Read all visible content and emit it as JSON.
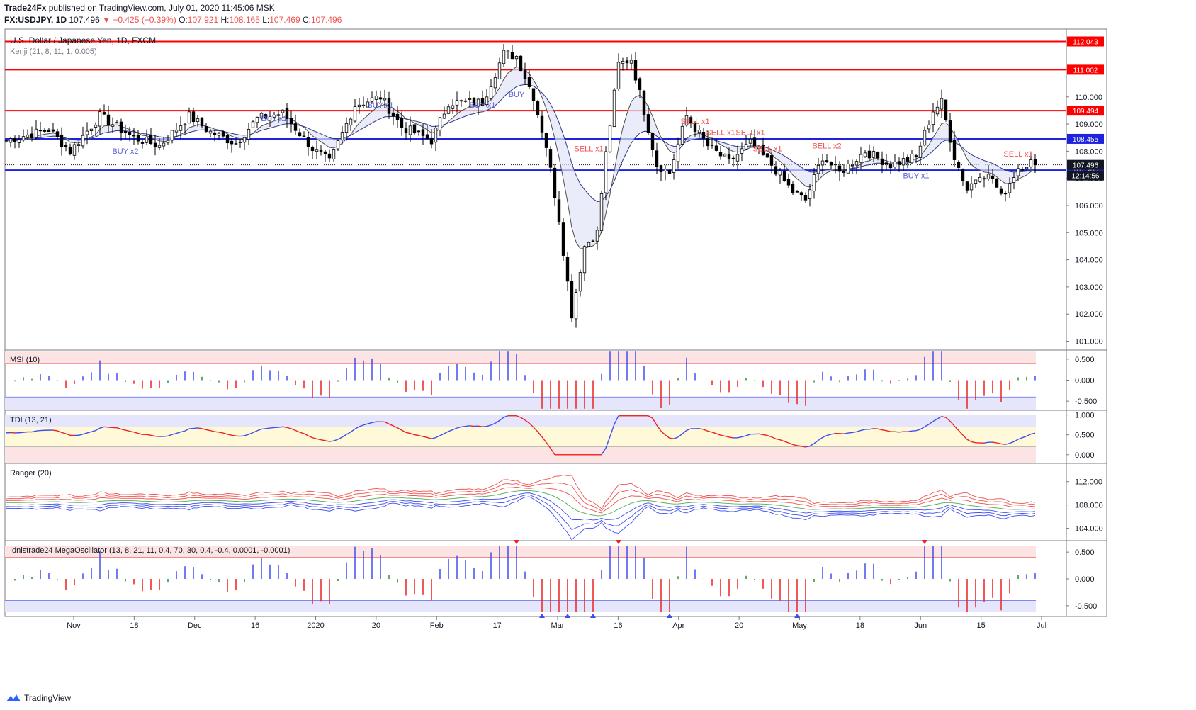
{
  "header": {
    "publisher": "Trade24Fx",
    "published_text": "published on TradingView.com, July 01, 2020 11:45:06 MSK",
    "symbol": "FX:USDJPY, 1D",
    "last": "107.496",
    "change": "−0.425 (−0.39%)",
    "o_label": "O:",
    "o": "107.921",
    "h_label": "H:",
    "h": "108.165",
    "l_label": "L:",
    "l": "107.469",
    "c_label": "C:",
    "c": "107.496"
  },
  "footer": {
    "brand": "TradingView",
    "logo_icon": "tradingview-logo-icon"
  },
  "colors": {
    "up": "#ffffff",
    "down": "#000000",
    "support": "#1e22dc",
    "resistance": "#ff0000",
    "kenji_up": "#4caf50",
    "kenji_down": "#ef5350",
    "osc_up": "#3f4df0",
    "osc_down": "#ef2020",
    "osc_neutral": "#2e8b3a"
  },
  "chart_data": [
    {
      "type": "candlestick",
      "title": "U.S. Dollar / Japanese Yen, 1D, FXCM",
      "indicator_label": "Kenji (21, 8, 11, 1, 0.005)",
      "y_ticks": [
        "112.000",
        "111.000",
        "110.000",
        "109.000",
        "108.000",
        "107.000",
        "106.000",
        "105.000",
        "104.000",
        "103.000",
        "102.000",
        "101.000"
      ],
      "ylim": [
        100.7,
        112.5
      ],
      "x_ticks": [
        "Nov",
        "18",
        "Dec",
        "16",
        "2020",
        "20",
        "Feb",
        "17",
        "Mar",
        "16",
        "Apr",
        "20",
        "May",
        "18",
        "Jun",
        "15",
        "Jul"
      ],
      "levels": [
        {
          "label": "112.043",
          "value": 112.043,
          "kind": "resistance"
        },
        {
          "label": "111.002",
          "value": 111.002,
          "kind": "resistance"
        },
        {
          "label": "109.494",
          "value": 109.494,
          "kind": "resistance"
        },
        {
          "label": "108.455",
          "value": 108.455,
          "kind": "support"
        },
        {
          "label": "107.300",
          "value": 107.3,
          "kind": "support"
        }
      ],
      "last_price_label": "107.496",
      "last_price": 107.496,
      "countdown_label": "12:14:56",
      "signals": [
        {
          "text": "BUY x2",
          "i": 28,
          "price": 107.9,
          "side": "buy"
        },
        {
          "text": "BUY x1",
          "i": 63,
          "price": 109.1,
          "side": "buy"
        },
        {
          "text": "BUY x1",
          "i": 88,
          "price": 109.6,
          "side": "buy"
        },
        {
          "text": "BUY x1",
          "i": 112,
          "price": 109.6,
          "side": "buy"
        },
        {
          "text": "BUY",
          "i": 120,
          "price": 110.0,
          "side": "buy"
        },
        {
          "text": "SELL x1",
          "i": 137,
          "price": 108.0,
          "side": "sell"
        },
        {
          "text": "SELL x1",
          "i": 162,
          "price": 109.0,
          "side": "sell"
        },
        {
          "text": "SELL x1",
          "i": 168,
          "price": 108.6,
          "side": "sell"
        },
        {
          "text": "SELL x1",
          "i": 175,
          "price": 108.6,
          "side": "sell"
        },
        {
          "text": "SELL x1",
          "i": 179,
          "price": 108.0,
          "side": "sell"
        },
        {
          "text": "SELL x2",
          "i": 193,
          "price": 108.1,
          "side": "sell"
        },
        {
          "text": "BUY x1",
          "i": 214,
          "price": 107.0,
          "side": "buy"
        },
        {
          "text": "SELL x1",
          "i": 238,
          "price": 107.8,
          "side": "sell"
        }
      ],
      "anchors": [
        [
          0,
          108.4
        ],
        [
          10,
          108.8
        ],
        [
          15,
          108.0
        ],
        [
          22,
          109.3
        ],
        [
          30,
          108.5
        ],
        [
          36,
          108.2
        ],
        [
          43,
          109.3
        ],
        [
          48,
          108.7
        ],
        [
          54,
          108.3
        ],
        [
          59,
          109.2
        ],
        [
          65,
          109.4
        ],
        [
          72,
          108.1
        ],
        [
          76,
          107.6
        ],
        [
          82,
          109.7
        ],
        [
          88,
          110.0
        ],
        [
          93,
          108.9
        ],
        [
          100,
          108.4
        ],
        [
          104,
          109.8
        ],
        [
          112,
          109.8
        ],
        [
          117,
          111.6
        ],
        [
          120,
          111.5
        ],
        [
          124,
          110.0
        ],
        [
          127,
          108.2
        ],
        [
          130,
          105.5
        ],
        [
          133,
          102.0
        ],
        [
          136,
          104.5
        ],
        [
          139,
          105.0
        ],
        [
          141,
          107.9
        ],
        [
          144,
          111.2
        ],
        [
          147,
          111.4
        ],
        [
          150,
          109.5
        ],
        [
          153,
          107.5
        ],
        [
          156,
          107.2
        ],
        [
          160,
          109.3
        ],
        [
          165,
          108.2
        ],
        [
          170,
          107.6
        ],
        [
          175,
          108.3
        ],
        [
          180,
          107.5
        ],
        [
          185,
          106.5
        ],
        [
          188,
          106.2
        ],
        [
          192,
          107.8
        ],
        [
          196,
          107.2
        ],
        [
          202,
          108.0
        ],
        [
          208,
          107.5
        ],
        [
          214,
          107.8
        ],
        [
          218,
          109.5
        ],
        [
          220,
          109.8
        ],
        [
          223,
          107.8
        ],
        [
          226,
          106.6
        ],
        [
          229,
          107.2
        ],
        [
          232,
          107.0
        ],
        [
          234,
          106.3
        ],
        [
          238,
          107.4
        ],
        [
          241,
          107.6
        ],
        [
          242,
          107.5
        ]
      ]
    },
    {
      "type": "histogram",
      "title": "MSI (10)",
      "y_ticks": [
        "0.500",
        "0.000",
        "-0.500"
      ],
      "ylim": [
        -0.7,
        0.7
      ]
    },
    {
      "type": "line",
      "title": "TDI (13, 21)",
      "y_ticks": [
        "1.000",
        "0.500",
        "0.000"
      ],
      "ylim": [
        -0.2,
        1.1
      ]
    },
    {
      "type": "line",
      "title": "Ranger (20)",
      "y_ticks": [
        "112.000",
        "108.000",
        "104.000"
      ],
      "ylim": [
        102.0,
        115.0
      ]
    },
    {
      "type": "histogram",
      "title": "Idnistrade24 MegaOscillator (13, 8, 21, 11, 0.4, 70, 30, 0.4, -0.4, 0.0001, -0.0001)",
      "y_ticks": [
        "0.500",
        "0.000",
        "-0.500"
      ],
      "ylim": [
        -0.7,
        0.7
      ]
    }
  ]
}
